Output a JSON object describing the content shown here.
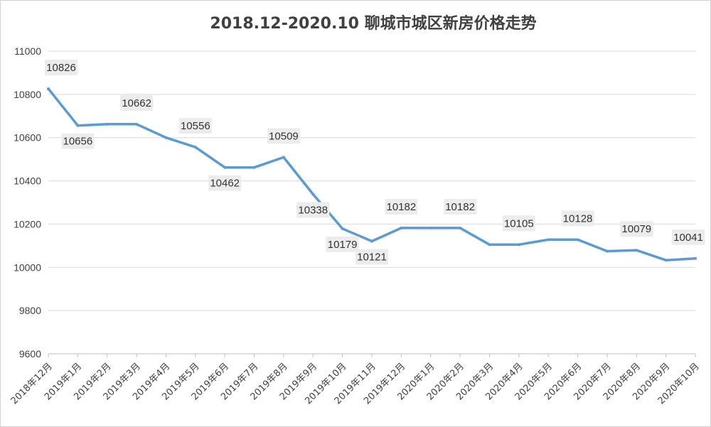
{
  "chart_data": {
    "type": "line",
    "title": "2018.12-2020.10 聊城市城区新房价格走势",
    "xlabel": "",
    "ylabel": "",
    "ylim": [
      9600,
      11000
    ],
    "yticks": [
      9600,
      9800,
      10000,
      10200,
      10400,
      10600,
      10800,
      11000
    ],
    "grid": true,
    "legend": "none",
    "categories": [
      "2018年12月",
      "2019年1月",
      "2019年2月",
      "2019年3月",
      "2019年4月",
      "2019年5月",
      "2019年6月",
      "2019年7月",
      "2019年8月",
      "2019年9月",
      "2019年10月",
      "2019年11月",
      "2019年12月",
      "2020年1月",
      "2020年2月",
      "2020年3月",
      "2020年4月",
      "2020年5月",
      "2020年6月",
      "2020年7月",
      "2020年8月",
      "2020年9月",
      "2020年10月"
    ],
    "series": [
      {
        "values": [
          10826,
          10656,
          10662,
          10662,
          10600,
          10556,
          10462,
          10462,
          10509,
          10338,
          10179,
          10121,
          10182,
          10182,
          10182,
          10105,
          10105,
          10128,
          10128,
          10075,
          10079,
          10033,
          10041
        ],
        "color": "#5b9bd5"
      }
    ],
    "data_labels": [
      {
        "index": 0,
        "text": "10826"
      },
      {
        "index": 1,
        "text": "10656"
      },
      {
        "index": 3,
        "text": "10662"
      },
      {
        "index": 5,
        "text": "10556"
      },
      {
        "index": 6,
        "text": "10462"
      },
      {
        "index": 8,
        "text": "10509"
      },
      {
        "index": 9,
        "text": "10338"
      },
      {
        "index": 10,
        "text": "10179"
      },
      {
        "index": 11,
        "text": "10121"
      },
      {
        "index": 12,
        "text": "10182"
      },
      {
        "index": 14,
        "text": "10182"
      },
      {
        "index": 16,
        "text": "10105"
      },
      {
        "index": 18,
        "text": "10128"
      },
      {
        "index": 20,
        "text": "10079"
      },
      {
        "index": 22,
        "text": "10041"
      }
    ]
  }
}
